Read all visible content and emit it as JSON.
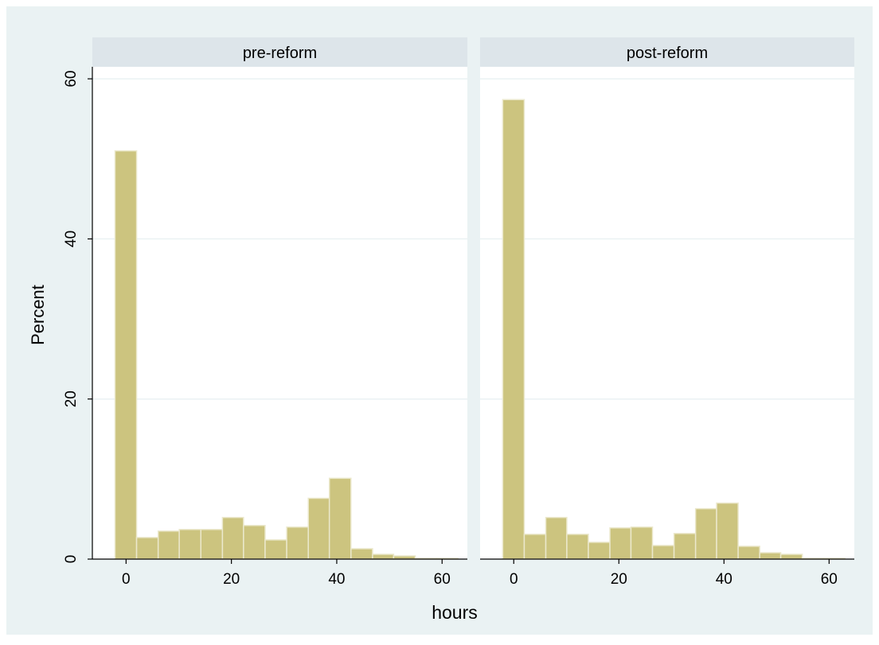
{
  "chart_data": {
    "type": "bar",
    "subtype": "histogram",
    "ylabel": "Percent",
    "xlabel": "hours",
    "ylim": [
      0,
      61.5
    ],
    "xlim": [
      -6.4,
      64.8
    ],
    "y_ticks": [
      0,
      20,
      40,
      60
    ],
    "x_ticks": [
      0,
      20,
      40,
      60
    ],
    "grid": true,
    "colors": {
      "bar_fill": "#ccc47f",
      "bar_edge": "#ebe8cc",
      "outer_background": "#eaf2f3",
      "plot_background": "#ffffff",
      "panel_header": "#dde5ea",
      "gridline": "#eaf2f3",
      "text": "#000000"
    },
    "panels": [
      {
        "label": "pre-reform",
        "bins": [
          {
            "x0": -2.1,
            "x1": 2.0,
            "value": 51.0
          },
          {
            "x0": 2.0,
            "x1": 6.1,
            "value": 2.7
          },
          {
            "x0": 6.1,
            "x1": 10.1,
            "value": 3.5
          },
          {
            "x0": 10.1,
            "x1": 14.2,
            "value": 3.7
          },
          {
            "x0": 14.2,
            "x1": 18.3,
            "value": 3.7
          },
          {
            "x0": 18.3,
            "x1": 22.3,
            "value": 5.2
          },
          {
            "x0": 22.3,
            "x1": 26.4,
            "value": 4.2
          },
          {
            "x0": 26.4,
            "x1": 30.5,
            "value": 2.4
          },
          {
            "x0": 30.5,
            "x1": 34.6,
            "value": 4.0
          },
          {
            "x0": 34.6,
            "x1": 38.6,
            "value": 7.6
          },
          {
            "x0": 38.6,
            "x1": 42.7,
            "value": 10.1
          },
          {
            "x0": 42.7,
            "x1": 46.8,
            "value": 1.3
          },
          {
            "x0": 46.8,
            "x1": 50.8,
            "value": 0.6
          },
          {
            "x0": 50.8,
            "x1": 54.9,
            "value": 0.4
          },
          {
            "x0": 54.9,
            "x1": 59.0,
            "value": 0.1
          },
          {
            "x0": 59.0,
            "x1": 63.0,
            "value": 0.1
          }
        ]
      },
      {
        "label": "post-reform",
        "bins": [
          {
            "x0": -2.1,
            "x1": 2.0,
            "value": 57.4
          },
          {
            "x0": 2.0,
            "x1": 6.1,
            "value": 3.1
          },
          {
            "x0": 6.1,
            "x1": 10.1,
            "value": 5.2
          },
          {
            "x0": 10.1,
            "x1": 14.2,
            "value": 3.1
          },
          {
            "x0": 14.2,
            "x1": 18.3,
            "value": 2.1
          },
          {
            "x0": 18.3,
            "x1": 22.3,
            "value": 3.9
          },
          {
            "x0": 22.3,
            "x1": 26.4,
            "value": 4.0
          },
          {
            "x0": 26.4,
            "x1": 30.5,
            "value": 1.7
          },
          {
            "x0": 30.5,
            "x1": 34.6,
            "value": 3.2
          },
          {
            "x0": 34.6,
            "x1": 38.6,
            "value": 6.3
          },
          {
            "x0": 38.6,
            "x1": 42.7,
            "value": 7.0
          },
          {
            "x0": 42.7,
            "x1": 46.8,
            "value": 1.6
          },
          {
            "x0": 46.8,
            "x1": 50.8,
            "value": 0.8
          },
          {
            "x0": 50.8,
            "x1": 54.9,
            "value": 0.6
          },
          {
            "x0": 54.9,
            "x1": 59.0,
            "value": 0.1
          },
          {
            "x0": 59.0,
            "x1": 63.0,
            "value": 0.1
          }
        ]
      }
    ]
  }
}
